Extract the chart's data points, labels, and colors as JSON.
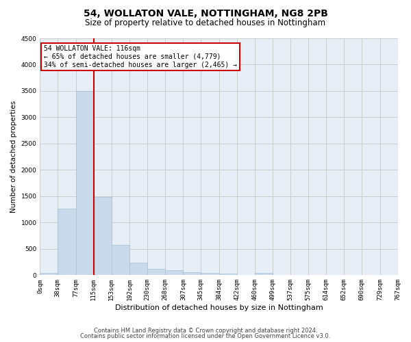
{
  "title1": "54, WOLLATON VALE, NOTTINGHAM, NG8 2PB",
  "title2": "Size of property relative to detached houses in Nottingham",
  "xlabel": "Distribution of detached houses by size in Nottingham",
  "ylabel": "Number of detached properties",
  "bar_color": "#c9d9ea",
  "bar_edge_color": "#a8c0d6",
  "grid_color": "#cccccc",
  "background_color": "#ffffff",
  "ax_background_color": "#e8eef5",
  "annotation_box_color": "#cc0000",
  "marker_line_color": "#cc0000",
  "marker_value": 115,
  "bin_edges": [
    0,
    38,
    77,
    115,
    153,
    192,
    230,
    268,
    307,
    345,
    384,
    422,
    460,
    499,
    537,
    575,
    614,
    652,
    690,
    729,
    767
  ],
  "bar_heights": [
    45,
    1270,
    3500,
    1480,
    570,
    240,
    115,
    90,
    55,
    40,
    25,
    0,
    45,
    0,
    0,
    0,
    0,
    0,
    0,
    0
  ],
  "tick_labels": [
    "0sqm",
    "38sqm",
    "77sqm",
    "115sqm",
    "153sqm",
    "192sqm",
    "230sqm",
    "268sqm",
    "307sqm",
    "345sqm",
    "384sqm",
    "422sqm",
    "460sqm",
    "499sqm",
    "537sqm",
    "575sqm",
    "614sqm",
    "652sqm",
    "690sqm",
    "729sqm",
    "767sqm"
  ],
  "ylim": [
    0,
    4500
  ],
  "yticks": [
    0,
    500,
    1000,
    1500,
    2000,
    2500,
    3000,
    3500,
    4000,
    4500
  ],
  "annot_line1": "54 WOLLATON VALE: 116sqm",
  "annot_line2": "← 65% of detached houses are smaller (4,779)",
  "annot_line3": "34% of semi-detached houses are larger (2,465) →",
  "footer1": "Contains HM Land Registry data © Crown copyright and database right 2024.",
  "footer2": "Contains public sector information licensed under the Open Government Licence v3.0.",
  "title1_fontsize": 10,
  "title2_fontsize": 8.5,
  "xlabel_fontsize": 8,
  "ylabel_fontsize": 7.5,
  "tick_fontsize": 6.5,
  "annot_fontsize": 7,
  "footer_fontsize": 6
}
